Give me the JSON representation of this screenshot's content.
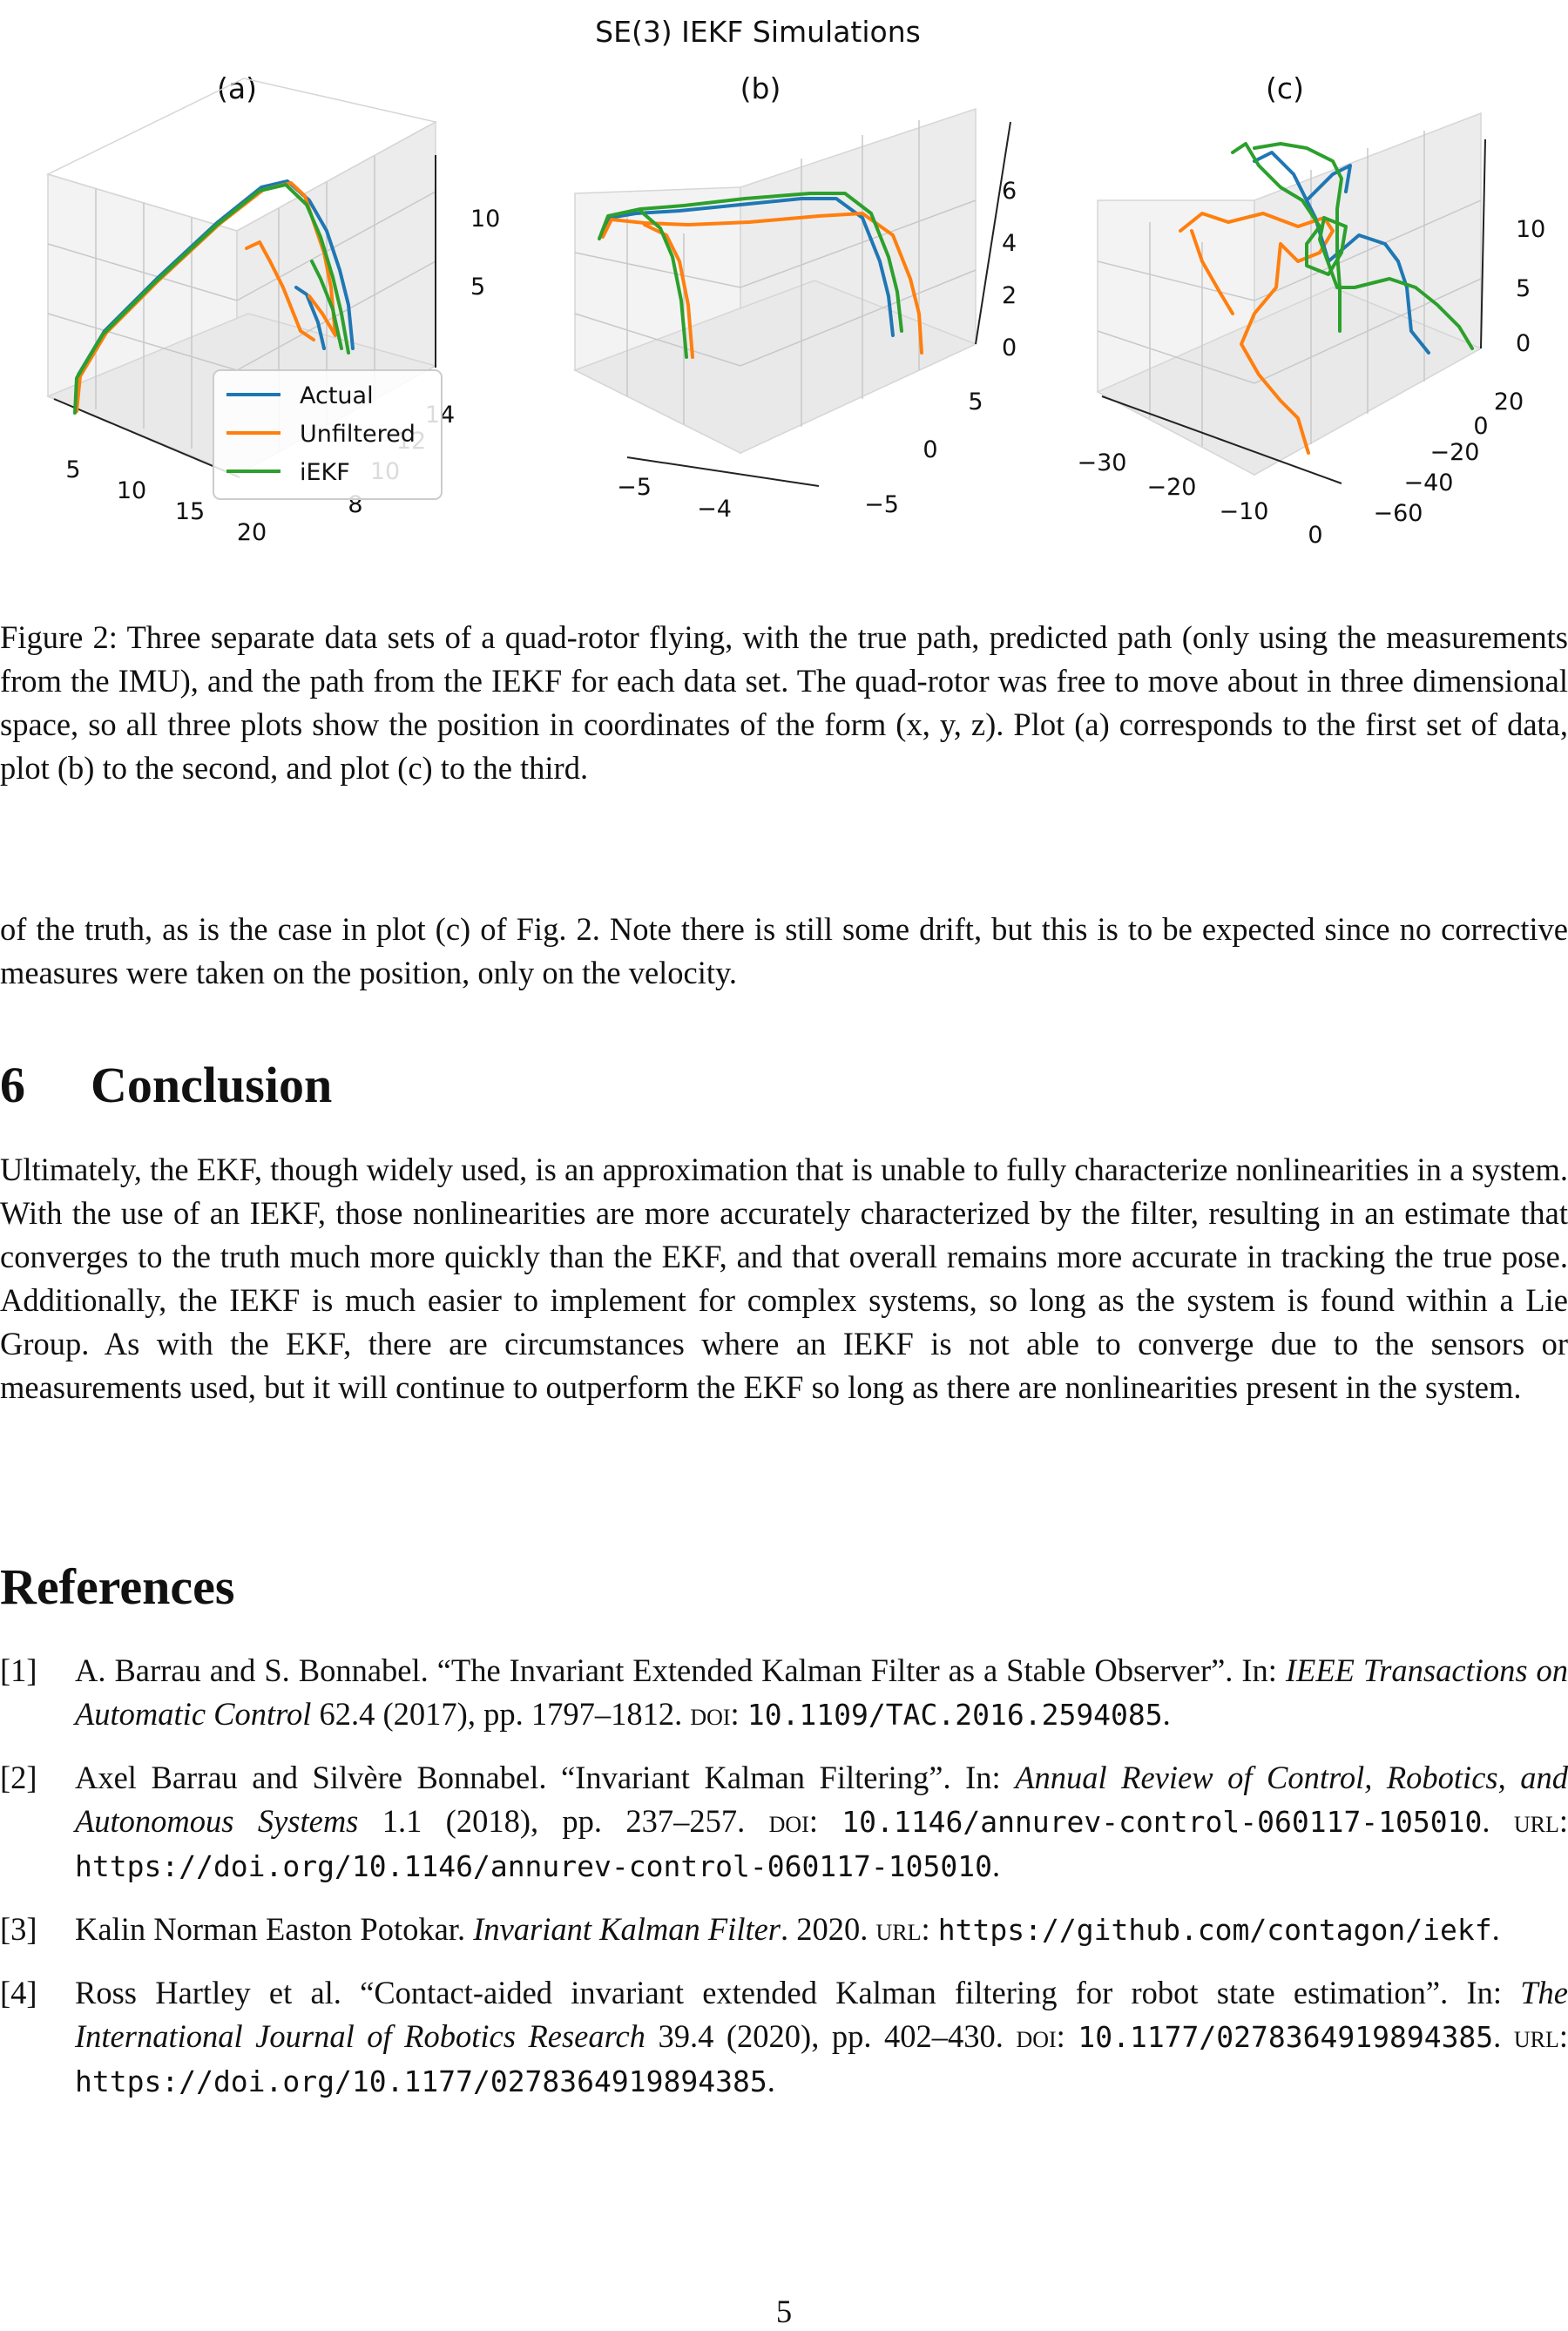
{
  "figure": {
    "title": "SE(3) IEKF Simulations",
    "legend": [
      "Actual",
      "Unfiltered",
      "iEKF"
    ],
    "colors": {
      "actual": "#1f77b4",
      "unfiltered": "#ff7f0e",
      "iekf": "#2ca02c"
    },
    "panels": [
      {
        "label": "(a)",
        "x_ticks": [
          "5",
          "10",
          "15",
          "20"
        ],
        "y_ticks": [
          "14",
          "12",
          "10",
          "8"
        ],
        "z_ticks": [
          "10",
          "5"
        ]
      },
      {
        "label": "(b)",
        "x_ticks": [
          "−5",
          "−4"
        ],
        "y_ticks": [
          "5",
          "0",
          "−5"
        ],
        "z_ticks": [
          "6",
          "4",
          "2",
          "0"
        ]
      },
      {
        "label": "(c)",
        "x_ticks": [
          "−30",
          "−20",
          "−10",
          "0"
        ],
        "y_ticks": [
          "20",
          "0",
          "−20",
          "−40",
          "−60"
        ],
        "z_ticks": [
          "10",
          "5",
          "0"
        ]
      }
    ]
  },
  "caption": "Figure 2: Three separate data sets of a quad-rotor flying, with the true path, predicted path (only using the measurements from the IMU), and the path from the IEKF for each data set. The quad-rotor was free to move about in three dimensional space, so all three plots show the position in coordinates of the form (x, y, z). Plot (a) corresponds to the first set of data, plot (b) to the second, and plot (c) to the third.",
  "paragraph_continued": "of the truth, as is the case in plot (c) of Fig. 2. Note there is still some drift, but this is to be expected since no corrective measures were taken on the position, only on the velocity.",
  "conclusion": {
    "number": "6",
    "title": "Conclusion",
    "body": "Ultimately, the EKF, though widely used, is an approximation that is unable to fully characterize nonlinearities in a system. With the use of an IEKF, those nonlinearities are more accurately characterized by the filter, resulting in an estimate that converges to the truth much more quickly than the EKF, and that overall remains more accurate in tracking the true pose. Additionally, the IEKF is much easier to implement for complex systems, so long as the system is found within a Lie Group. As with the EKF, there are circumstances where an IEKF is not able to converge due to the sensors or measurements used, but it will continue to outperform the EKF so long as there are nonlinearities present in the system."
  },
  "references": {
    "title": "References",
    "items": [
      {
        "num": "[1]",
        "pre": "A. Barrau and S. Bonnabel. “The Invariant Extended Kalman Filter as a Stable Observer”. In: ",
        "venue": "IEEE Transactions on Automatic Control",
        "post": " 62.4 (2017), pp. 1797–1812. ",
        "doi_label": "doi",
        "doi": "10.1109/TAC.2016.2594085",
        "url_label": "",
        "url": ""
      },
      {
        "num": "[2]",
        "pre": "Axel Barrau and Silvère Bonnabel. “Invariant Kalman Filtering”. In: ",
        "venue": "Annual Review of Control, Robotics, and Autonomous Systems",
        "post": " 1.1 (2018), pp. 237–257. ",
        "doi_label": "doi",
        "doi": "10.1146/annurev-control-060117-105010",
        "url_label": "url",
        "url": "https://doi.org/10.1146/annurev-control-060117-105010"
      },
      {
        "num": "[3]",
        "pre": "Kalin Norman Easton Potokar. ",
        "venue": "Invariant Kalman Filter",
        "post": ". 2020. ",
        "doi_label": "",
        "doi": "",
        "url_label": "url",
        "url": "https://github.com/contagon/iekf"
      },
      {
        "num": "[4]",
        "pre": "Ross Hartley et al. “Contact-aided invariant extended Kalman filtering for robot state estimation”. In: ",
        "venue": "The International Journal of Robotics Research",
        "post": " 39.4 (2020), pp. 402–430. ",
        "doi_label": "doi",
        "doi": "10.1177/0278364919894385",
        "url_label": "url",
        "url": "https://doi.org/10.1177/0278364919894385"
      }
    ]
  },
  "page_number": "5"
}
